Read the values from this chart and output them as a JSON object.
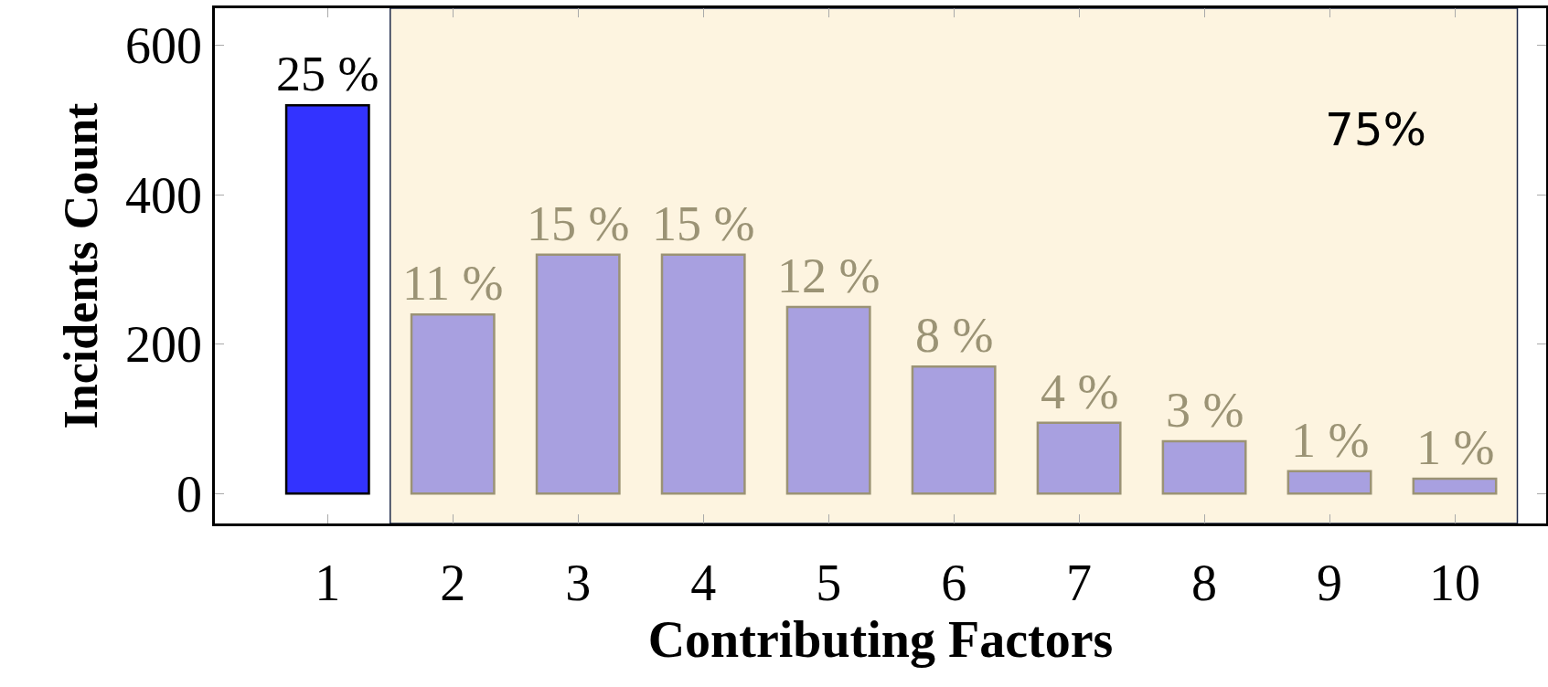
{
  "chart_data": {
    "type": "bar",
    "xlabel": "Contributing Factors",
    "ylabel": "Incidents Count",
    "categories": [
      "1",
      "2",
      "3",
      "4",
      "5",
      "6",
      "7",
      "8",
      "9",
      "10"
    ],
    "values": [
      520,
      240,
      320,
      320,
      250,
      170,
      95,
      70,
      30,
      20
    ],
    "colors": [
      "#3333ff",
      "#a8a0e0",
      "#a8a0e0",
      "#a8a0e0",
      "#a8a0e0",
      "#a8a0e0",
      "#a8a0e0",
      "#a8a0e0",
      "#a8a0e0",
      "#a8a0e0"
    ],
    "annotations": [
      {
        "text": "25 %",
        "x": "1",
        "y": 520
      },
      {
        "text": "11 %",
        "x": "2",
        "y": 240
      },
      {
        "text": "15 %",
        "x": "3",
        "y": 320
      },
      {
        "text": "15 %",
        "x": "4",
        "y": 320
      },
      {
        "text": "12 %",
        "x": "5",
        "y": 250
      },
      {
        "text": "8 %",
        "x": "6",
        "y": 170
      },
      {
        "text": "4 %",
        "x": "7",
        "y": 95
      },
      {
        "text": "3 %",
        "x": "8",
        "y": 70
      },
      {
        "text": "1 %",
        "x": "9",
        "y": 30
      },
      {
        "text": "1 %",
        "x": "10",
        "y": 20
      }
    ],
    "ylim": [
      -40,
      650
    ],
    "yticks": [
      0,
      200,
      400,
      600
    ],
    "grid": false,
    "legend": false,
    "bands": [
      {
        "axis": "x",
        "from": "2",
        "to": "10",
        "label": "75%",
        "color": "#fdf4e0"
      }
    ]
  }
}
